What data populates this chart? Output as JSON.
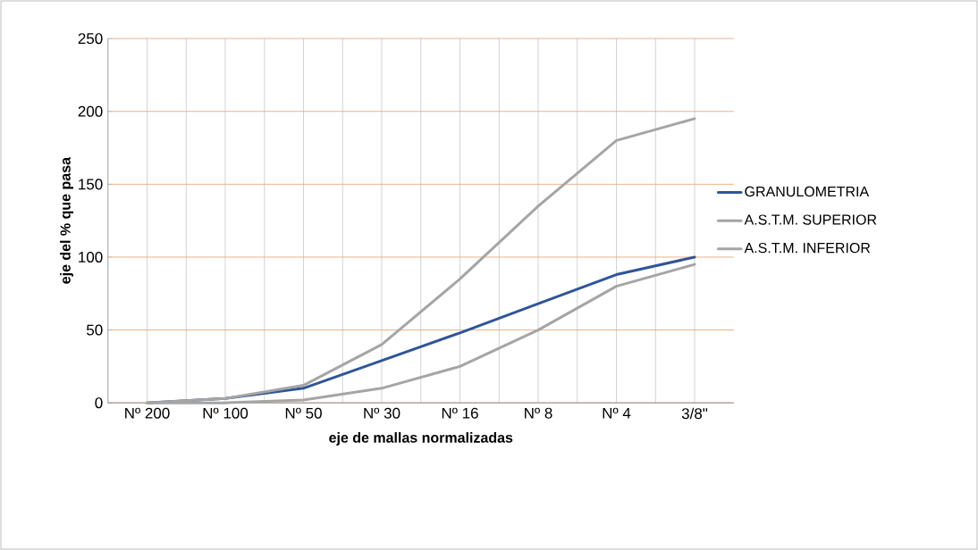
{
  "chart_data": {
    "type": "line",
    "xlabel": "eje de mallas normalizadas",
    "ylabel": "eje del % que pasa",
    "categories": [
      "Nº 200",
      "Nº 100",
      "Nº 50",
      "Nº 30",
      "Nº 16",
      "Nº 8",
      "Nº 4",
      "3/8\""
    ],
    "series": [
      {
        "name": "GRANULOMETRIA",
        "color": "#2f5597",
        "values": [
          0,
          3,
          10,
          29,
          48,
          68,
          88,
          100
        ]
      },
      {
        "name": "A.S.T.M. SUPERIOR",
        "color": "#a5a5a5",
        "values": [
          0,
          3,
          12,
          40,
          85,
          135,
          180,
          195
        ]
      },
      {
        "name": "A.S.T.M. INFERIOR",
        "color": "#a5a5a5",
        "values": [
          0,
          0,
          2,
          10,
          25,
          50,
          80,
          95
        ]
      }
    ],
    "ylim": [
      0,
      250
    ],
    "yticks": [
      0,
      50,
      100,
      150,
      200,
      250
    ],
    "grid": true,
    "legend": "right",
    "marker": "none",
    "line_style": "solid"
  }
}
